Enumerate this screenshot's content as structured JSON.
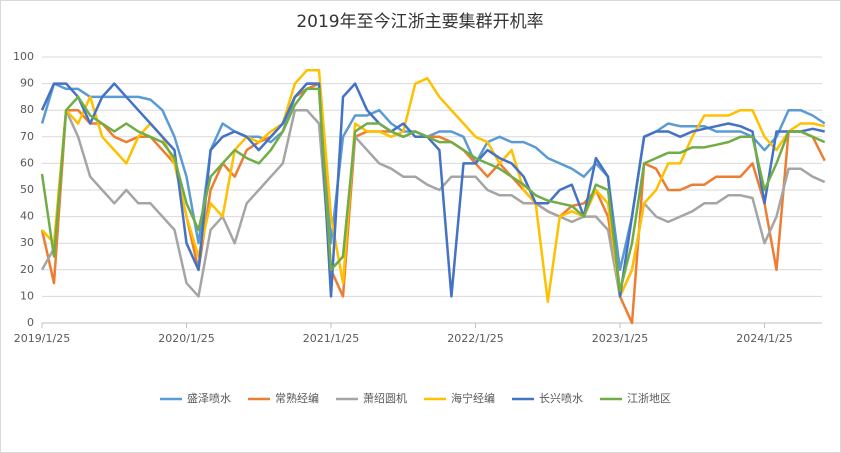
{
  "chart_data": {
    "type": "line",
    "title": "2019年至今江浙主要集群开机率",
    "categories": [
      "2019/1/25",
      null,
      null,
      null,
      null,
      null,
      null,
      null,
      null,
      null,
      null,
      null,
      "2020/1/25",
      null,
      null,
      null,
      null,
      null,
      null,
      null,
      null,
      null,
      null,
      null,
      "2021/1/25",
      null,
      null,
      null,
      null,
      null,
      null,
      null,
      null,
      null,
      null,
      null,
      "2022/1/25",
      null,
      null,
      null,
      null,
      null,
      null,
      null,
      null,
      null,
      null,
      null,
      "2023/1/25",
      null,
      null,
      null,
      null,
      null,
      null,
      null,
      null,
      null,
      null,
      null,
      "2024/1/25",
      null,
      null,
      null,
      null,
      null
    ],
    "ylim": [
      0,
      100
    ],
    "yticks": [
      0,
      10,
      20,
      30,
      40,
      50,
      60,
      70,
      80,
      90,
      100
    ],
    "grid": true,
    "legend": "bottom",
    "series": [
      {
        "name": "盛泽喷水",
        "color": "#5b9bd5",
        "values": [
          75,
          90,
          88,
          88,
          85,
          85,
          85,
          85,
          85,
          84,
          80,
          70,
          55,
          30,
          65,
          75,
          72,
          70,
          70,
          68,
          72,
          85,
          90,
          90,
          30,
          70,
          78,
          78,
          80,
          75,
          72,
          72,
          70,
          72,
          72,
          70,
          60,
          68,
          70,
          68,
          68,
          66,
          62,
          60,
          58,
          55,
          60,
          55,
          20,
          40,
          70,
          72,
          75,
          74,
          74,
          74,
          72,
          72,
          72,
          70,
          65,
          70,
          80,
          80,
          78,
          75
        ]
      },
      {
        "name": "常熟经编",
        "color": "#ed7d31",
        "values": [
          35,
          15,
          80,
          80,
          75,
          75,
          70,
          68,
          70,
          70,
          65,
          60,
          40,
          20,
          50,
          60,
          55,
          65,
          68,
          70,
          75,
          85,
          88,
          90,
          20,
          10,
          70,
          72,
          72,
          72,
          70,
          72,
          70,
          70,
          68,
          65,
          60,
          55,
          60,
          55,
          50,
          45,
          42,
          40,
          44,
          45,
          50,
          40,
          10,
          0,
          60,
          58,
          50,
          50,
          52,
          52,
          55,
          55,
          55,
          60,
          45,
          20,
          72,
          72,
          70,
          61
        ]
      },
      {
        "name": "萧绍圆机",
        "color": "#a5a5a5",
        "values": [
          20,
          28,
          80,
          70,
          55,
          50,
          45,
          50,
          45,
          45,
          40,
          35,
          15,
          10,
          35,
          40,
          30,
          45,
          50,
          55,
          60,
          80,
          80,
          75,
          20,
          25,
          70,
          65,
          60,
          58,
          55,
          55,
          52,
          50,
          55,
          55,
          55,
          50,
          48,
          48,
          45,
          45,
          42,
          40,
          38,
          40,
          40,
          35,
          10,
          20,
          45,
          40,
          38,
          40,
          42,
          45,
          45,
          48,
          48,
          47,
          30,
          40,
          58,
          58,
          55,
          53
        ]
      },
      {
        "name": "海宁经编",
        "color": "#ffc000",
        "values": [
          35,
          30,
          80,
          75,
          85,
          70,
          65,
          60,
          70,
          75,
          70,
          60,
          40,
          25,
          45,
          40,
          65,
          70,
          68,
          72,
          75,
          90,
          95,
          95,
          40,
          15,
          75,
          72,
          72,
          70,
          72,
          90,
          92,
          85,
          80,
          75,
          70,
          68,
          60,
          65,
          50,
          45,
          8,
          40,
          42,
          40,
          50,
          45,
          10,
          20,
          45,
          50,
          60,
          60,
          70,
          78,
          78,
          78,
          80,
          80,
          70,
          65,
          72,
          75,
          75,
          74
        ]
      },
      {
        "name": "长兴喷水",
        "color": "#4472c4",
        "values": [
          80,
          90,
          90,
          85,
          75,
          85,
          90,
          85,
          80,
          75,
          70,
          65,
          30,
          20,
          65,
          70,
          72,
          70,
          65,
          70,
          75,
          85,
          90,
          90,
          10,
          85,
          90,
          80,
          75,
          72,
          75,
          70,
          70,
          65,
          10,
          60,
          60,
          65,
          62,
          60,
          55,
          45,
          45,
          50,
          52,
          40,
          62,
          55,
          10,
          40,
          70,
          72,
          72,
          70,
          72,
          73,
          74,
          75,
          74,
          72,
          45,
          72,
          72,
          72,
          73,
          72
        ]
      },
      {
        "name": "江浙地区",
        "color": "#70ad47",
        "values": [
          56,
          25,
          80,
          85,
          78,
          75,
          72,
          75,
          72,
          70,
          68,
          62,
          45,
          35,
          55,
          60,
          65,
          62,
          60,
          65,
          72,
          82,
          88,
          88,
          20,
          25,
          72,
          75,
          75,
          72,
          70,
          72,
          70,
          68,
          68,
          65,
          62,
          60,
          58,
          55,
          52,
          48,
          46,
          45,
          44,
          40,
          52,
          50,
          12,
          30,
          60,
          62,
          64,
          64,
          66,
          66,
          67,
          68,
          70,
          70,
          50,
          60,
          72,
          72,
          70,
          68
        ]
      }
    ]
  }
}
